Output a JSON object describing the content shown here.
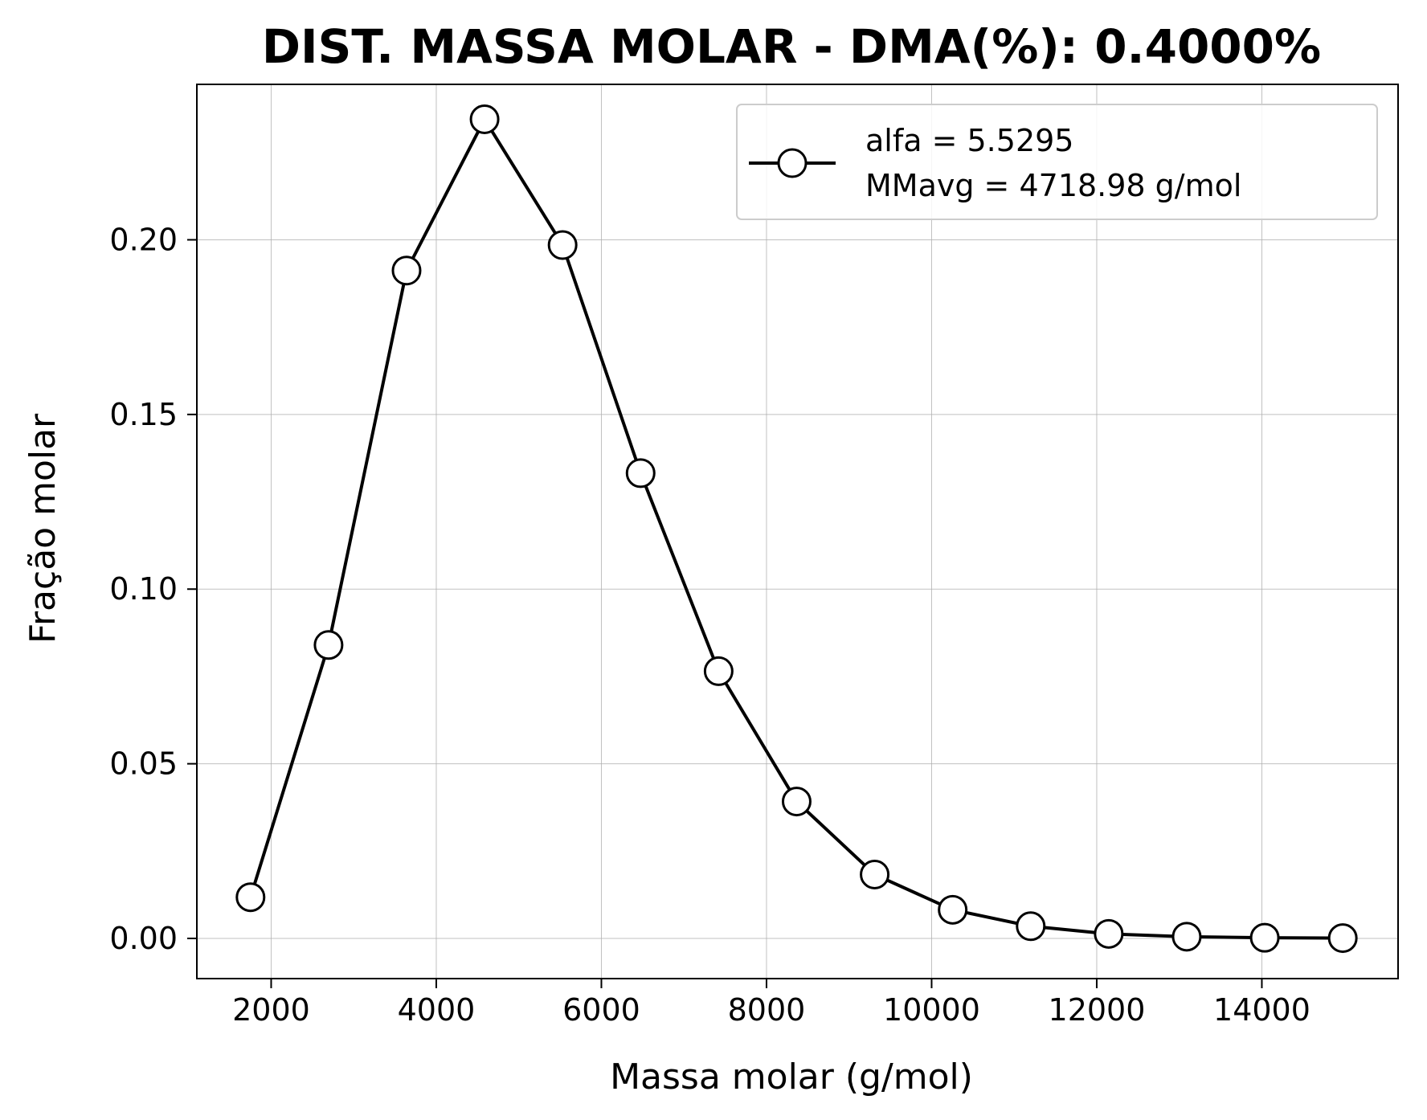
{
  "chart_data": {
    "type": "line",
    "title": "DIST. MASSA MOLAR - DMA(%): 0.4000%",
    "xlabel": "Massa molar (g/mol)",
    "ylabel": "Fração molar",
    "xlim": [
      1100,
      15650
    ],
    "ylim": [
      -0.0115,
      0.2445
    ],
    "xticks": [
      2000,
      4000,
      6000,
      8000,
      10000,
      12000,
      14000
    ],
    "xtick_labels": [
      "2000",
      "4000",
      "6000",
      "8000",
      "10000",
      "12000",
      "14000"
    ],
    "yticks": [
      0.0,
      0.05,
      0.1,
      0.15,
      0.2
    ],
    "ytick_labels": [
      "0.00",
      "0.05",
      "0.10",
      "0.15",
      "0.20"
    ],
    "grid": true,
    "legend": {
      "position": "top-right",
      "lines": [
        "alfa = 5.5295",
        "MMavg = 4718.98 g/mol"
      ]
    },
    "series": [
      {
        "marker": "open-circle",
        "color": "#000000",
        "x": [
          1750,
          2695,
          3640,
          4585,
          5530,
          6475,
          7420,
          8365,
          9310,
          10255,
          11200,
          12145,
          13090,
          14035,
          14980
        ],
        "y": [
          0.0118,
          0.084,
          0.1912,
          0.2345,
          0.1985,
          0.1332,
          0.0765,
          0.0392,
          0.0183,
          0.0082,
          0.0035,
          0.0013,
          0.0005,
          0.0002,
          0.0001
        ]
      }
    ]
  }
}
